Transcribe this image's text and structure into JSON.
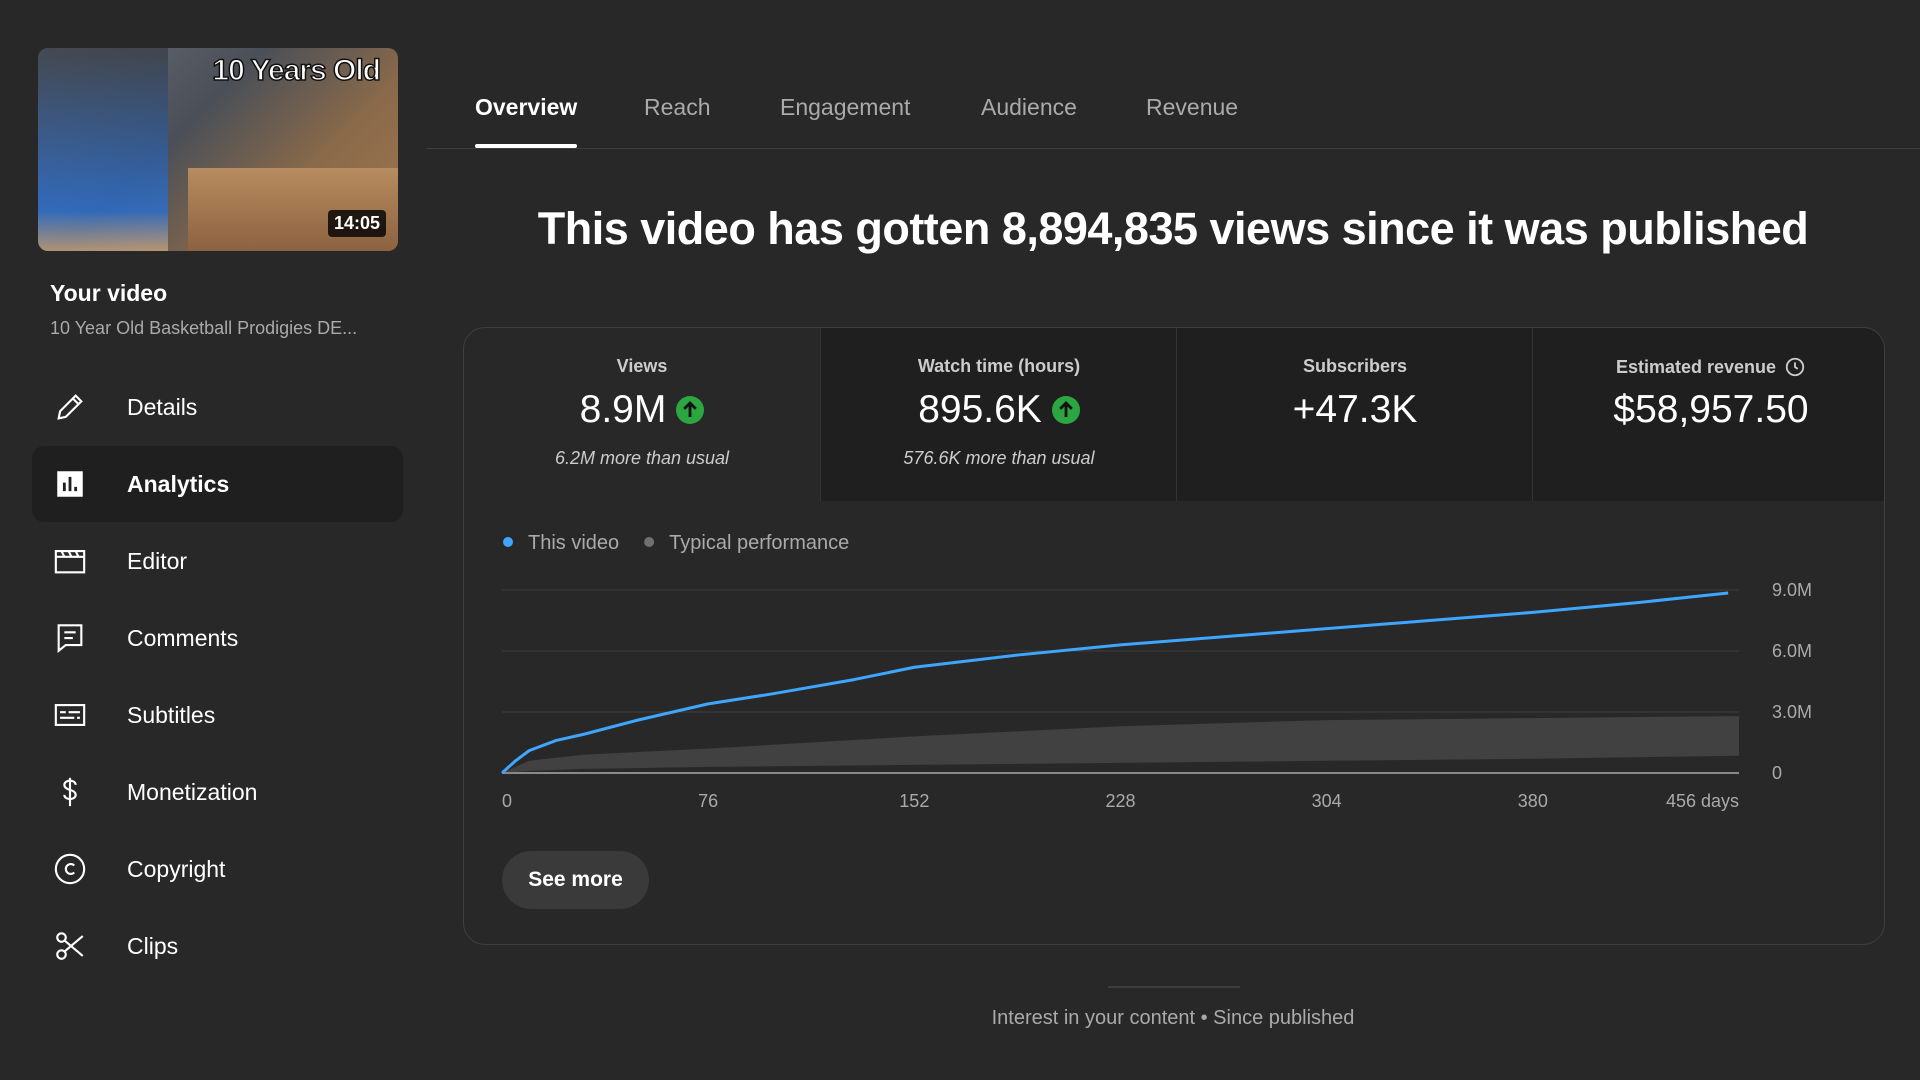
{
  "sidebar": {
    "thumbnail": {
      "caption": "10 Years Old",
      "duration": "14:05"
    },
    "heading": "Your video",
    "video_title": "10 Year Old Basketball Prodigies DE...",
    "nav": [
      {
        "label": "Details",
        "selected": false
      },
      {
        "label": "Analytics",
        "selected": true
      },
      {
        "label": "Editor",
        "selected": false
      },
      {
        "label": "Comments",
        "selected": false
      },
      {
        "label": "Subtitles",
        "selected": false
      },
      {
        "label": "Monetization",
        "selected": false
      },
      {
        "label": "Copyright",
        "selected": false
      },
      {
        "label": "Clips",
        "selected": false
      }
    ]
  },
  "tabs": {
    "items": [
      "Overview",
      "Reach",
      "Engagement",
      "Audience",
      "Revenue"
    ],
    "selected": 0
  },
  "headline": "This video has gotten 8,894,835 views since it was published",
  "metrics": [
    {
      "label": "Views",
      "value": "8.9M",
      "note": "6.2M more than usual",
      "trend": "up",
      "selected": true
    },
    {
      "label": "Watch time (hours)",
      "value": "895.6K",
      "note": "576.6K more than usual",
      "trend": "up",
      "selected": false
    },
    {
      "label": "Subscribers",
      "value": "+47.3K",
      "selected": false
    },
    {
      "label": "Estimated revenue",
      "value": "$58,957.50",
      "info_icon": true,
      "selected": false
    }
  ],
  "chart_data": {
    "type": "line",
    "series": [
      {
        "name": "This video",
        "color": "#3ea6ff",
        "x": [
          0,
          5,
          10,
          20,
          30,
          50,
          76,
          100,
          130,
          152,
          190,
          228,
          266,
          304,
          342,
          380,
          420,
          452
        ],
        "values": [
          0,
          600000,
          1100000,
          1600000,
          1900000,
          2600000,
          3400000,
          3900000,
          4600000,
          5200000,
          5800000,
          6300000,
          6700000,
          7100000,
          7500000,
          7900000,
          8400000,
          8850000
        ]
      },
      {
        "name": "Typical performance",
        "color": "#717171",
        "style": "band",
        "x": [
          0,
          10,
          30,
          76,
          152,
          228,
          304,
          380,
          456
        ],
        "values": [
          0,
          600000,
          900000,
          1200000,
          1800000,
          2300000,
          2600000,
          2700000,
          2800000
        ],
        "lower": [
          0,
          100000,
          200000,
          300000,
          400000,
          500000,
          600000,
          700000,
          850000
        ]
      }
    ],
    "xlim": [
      0,
      456
    ],
    "xticks": [
      0,
      76,
      152,
      228,
      304,
      380,
      {
        "value": 456,
        "label": "456 days"
      }
    ],
    "ylim": [
      0,
      9000000
    ],
    "yticks": [
      0,
      {
        "value": 3000000,
        "label": "3.0M"
      },
      {
        "value": 6000000,
        "label": "6.0M"
      },
      {
        "value": 9000000,
        "label": "9.0M"
      }
    ],
    "grid": true
  },
  "see_more": "See more",
  "footer": "Interest in your content • Since published"
}
